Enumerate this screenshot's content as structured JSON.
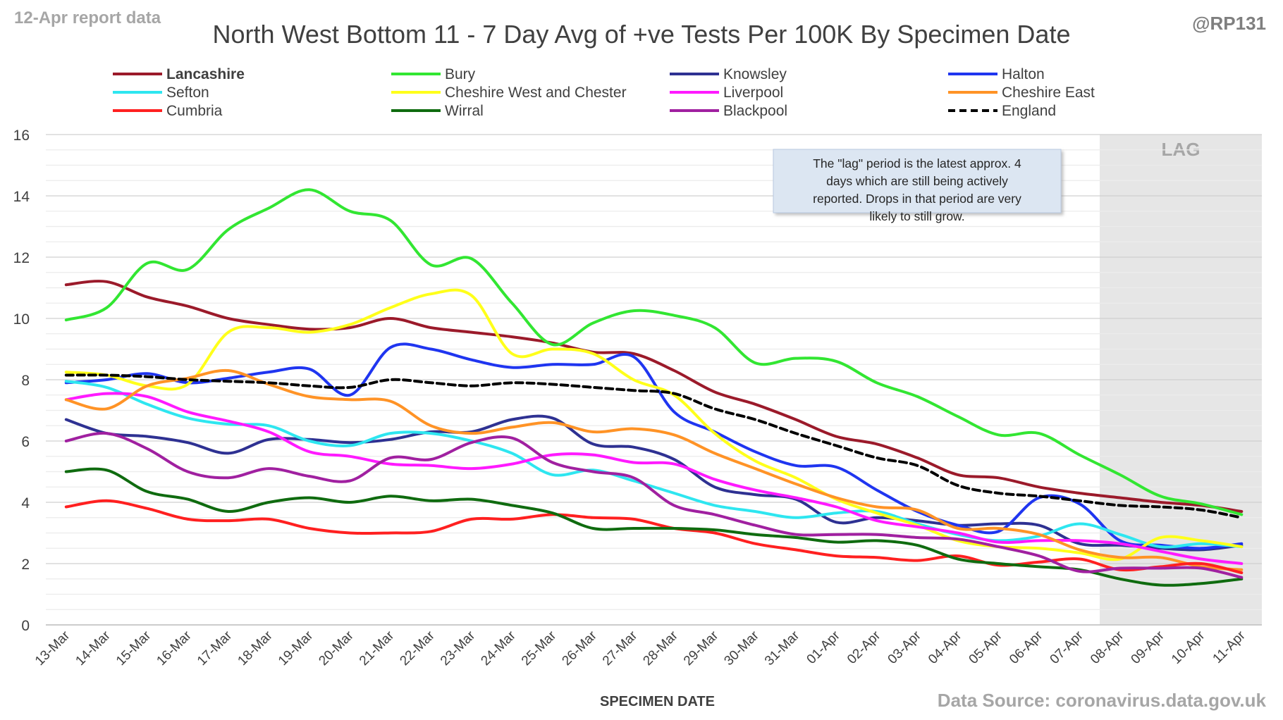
{
  "header": {
    "report_label": "12-Apr report data",
    "handle": "@RP131",
    "source": "Data Source: coronavirus.data.gov.uk"
  },
  "chart_data": {
    "type": "line",
    "title": "North West Bottom 11 - 7 Day Avg of +ve Tests Per 100K By Specimen Date",
    "xlabel": "SPECIMEN DATE",
    "ylabel": "",
    "ylim": [
      0,
      16
    ],
    "yticks": [
      0,
      2,
      4,
      6,
      8,
      10,
      12,
      14,
      16
    ],
    "grid": true,
    "legend_position": "top",
    "categories": [
      "13-Mar",
      "14-Mar",
      "15-Mar",
      "16-Mar",
      "17-Mar",
      "18-Mar",
      "19-Mar",
      "20-Mar",
      "21-Mar",
      "22-Mar",
      "23-Mar",
      "24-Mar",
      "25-Mar",
      "26-Mar",
      "27-Mar",
      "28-Mar",
      "29-Mar",
      "30-Mar",
      "31-Mar",
      "01-Apr",
      "02-Apr",
      "03-Apr",
      "04-Apr",
      "05-Apr",
      "06-Apr",
      "07-Apr",
      "08-Apr",
      "09-Apr",
      "10-Apr",
      "11-Apr"
    ],
    "lag_region": {
      "label": "LAG",
      "from": "08-Apr",
      "to": "11-Apr"
    },
    "annotation": "The \"lag\" period is the latest approx. 4 days which are still being actively reported. Drops in that period are very likely to still grow.",
    "series": [
      {
        "name": "Lancashire",
        "color": "#9b1a2a",
        "bold": true,
        "values": [
          11.1,
          11.2,
          10.7,
          10.4,
          10.0,
          9.8,
          9.65,
          9.7,
          10.0,
          9.7,
          9.55,
          9.4,
          9.2,
          8.9,
          8.85,
          8.3,
          7.6,
          7.2,
          6.7,
          6.15,
          5.9,
          5.45,
          4.9,
          4.8,
          4.5,
          4.3,
          4.15,
          4.0,
          3.9,
          3.7
        ]
      },
      {
        "name": "Bury",
        "color": "#32e632",
        "values": [
          9.95,
          10.35,
          11.8,
          11.6,
          12.9,
          13.6,
          14.2,
          13.5,
          13.2,
          11.75,
          11.95,
          10.5,
          9.15,
          9.85,
          10.25,
          10.1,
          9.7,
          8.55,
          8.7,
          8.6,
          7.9,
          7.45,
          6.8,
          6.2,
          6.25,
          5.55,
          4.9,
          4.2,
          3.95,
          3.6
        ]
      },
      {
        "name": "Knowsley",
        "color": "#2e3192",
        "values": [
          6.7,
          6.25,
          6.15,
          5.95,
          5.6,
          6.05,
          6.05,
          5.95,
          6.05,
          6.3,
          6.3,
          6.7,
          6.75,
          5.9,
          5.8,
          5.4,
          4.5,
          4.25,
          4.1,
          3.35,
          3.5,
          3.4,
          3.25,
          3.3,
          3.25,
          2.65,
          2.6,
          2.5,
          2.45,
          2.6
        ]
      },
      {
        "name": "Halton",
        "color": "#1f35f0",
        "values": [
          7.9,
          8.0,
          8.2,
          7.9,
          8.05,
          8.25,
          8.35,
          7.5,
          9.05,
          9.0,
          8.65,
          8.4,
          8.5,
          8.5,
          8.75,
          6.95,
          6.3,
          5.65,
          5.2,
          5.15,
          4.4,
          3.7,
          3.25,
          3.05,
          4.15,
          3.95,
          2.75,
          2.6,
          2.5,
          2.65
        ]
      },
      {
        "name": "Sefton",
        "color": "#2ee6f0",
        "values": [
          7.95,
          7.75,
          7.2,
          6.75,
          6.55,
          6.5,
          6.0,
          5.85,
          6.25,
          6.25,
          6.0,
          5.6,
          4.9,
          5.05,
          4.7,
          4.3,
          3.9,
          3.7,
          3.5,
          3.65,
          3.7,
          3.3,
          2.95,
          2.75,
          2.9,
          3.3,
          2.95,
          2.55,
          2.65,
          2.55
        ]
      },
      {
        "name": "Cheshire West and Chester",
        "color": "#ffff1a",
        "values": [
          8.25,
          8.15,
          7.8,
          7.85,
          9.55,
          9.7,
          9.55,
          9.8,
          10.35,
          10.8,
          10.75,
          8.85,
          9.0,
          8.85,
          8.0,
          7.5,
          6.25,
          5.35,
          4.8,
          4.1,
          3.65,
          3.25,
          2.75,
          2.55,
          2.5,
          2.35,
          2.15,
          2.85,
          2.75,
          2.55
        ]
      },
      {
        "name": "Liverpool",
        "color": "#ff1aff",
        "values": [
          7.35,
          7.55,
          7.45,
          6.95,
          6.65,
          6.3,
          5.65,
          5.5,
          5.25,
          5.2,
          5.1,
          5.25,
          5.55,
          5.55,
          5.3,
          5.25,
          4.75,
          4.4,
          4.15,
          3.85,
          3.4,
          3.2,
          3.0,
          2.7,
          2.75,
          2.75,
          2.65,
          2.4,
          2.15,
          2.0
        ]
      },
      {
        "name": "Cheshire East",
        "color": "#ff9326",
        "values": [
          7.35,
          7.05,
          7.8,
          8.05,
          8.3,
          7.85,
          7.45,
          7.35,
          7.3,
          6.5,
          6.25,
          6.45,
          6.6,
          6.3,
          6.4,
          6.2,
          5.6,
          5.1,
          4.6,
          4.15,
          3.85,
          3.75,
          3.15,
          3.15,
          2.95,
          2.45,
          2.2,
          2.2,
          1.9,
          1.8
        ]
      },
      {
        "name": "Cumbria",
        "color": "#ff2020",
        "values": [
          3.85,
          4.05,
          3.8,
          3.45,
          3.4,
          3.45,
          3.15,
          3.0,
          3.0,
          3.05,
          3.45,
          3.45,
          3.6,
          3.5,
          3.45,
          3.15,
          3.0,
          2.65,
          2.45,
          2.25,
          2.2,
          2.1,
          2.25,
          1.95,
          2.05,
          2.15,
          1.8,
          1.9,
          2.0,
          1.7
        ]
      },
      {
        "name": "Wirral",
        "color": "#0f6b0f",
        "values": [
          5.0,
          5.05,
          4.35,
          4.1,
          3.7,
          4.0,
          4.15,
          4.0,
          4.2,
          4.05,
          4.1,
          3.9,
          3.65,
          3.15,
          3.15,
          3.15,
          3.1,
          2.95,
          2.85,
          2.7,
          2.75,
          2.6,
          2.15,
          2.0,
          1.9,
          1.8,
          1.5,
          1.3,
          1.35,
          1.5
        ]
      },
      {
        "name": "Blackpool",
        "color": "#a020a0",
        "values": [
          6.0,
          6.25,
          5.75,
          5.0,
          4.8,
          5.1,
          4.85,
          4.7,
          5.45,
          5.4,
          5.95,
          6.1,
          5.3,
          5.0,
          4.8,
          3.9,
          3.6,
          3.25,
          2.95,
          2.95,
          2.95,
          2.85,
          2.8,
          2.55,
          2.25,
          1.75,
          1.85,
          1.85,
          1.85,
          1.55
        ]
      },
      {
        "name": "England",
        "color": "#000000",
        "dashed": true,
        "values": [
          8.15,
          8.15,
          8.1,
          8.0,
          7.95,
          7.9,
          7.8,
          7.75,
          8.0,
          7.9,
          7.8,
          7.9,
          7.85,
          7.75,
          7.65,
          7.55,
          7.05,
          6.7,
          6.25,
          5.85,
          5.45,
          5.2,
          4.55,
          4.3,
          4.2,
          4.05,
          3.9,
          3.85,
          3.75,
          3.5
        ]
      }
    ]
  }
}
